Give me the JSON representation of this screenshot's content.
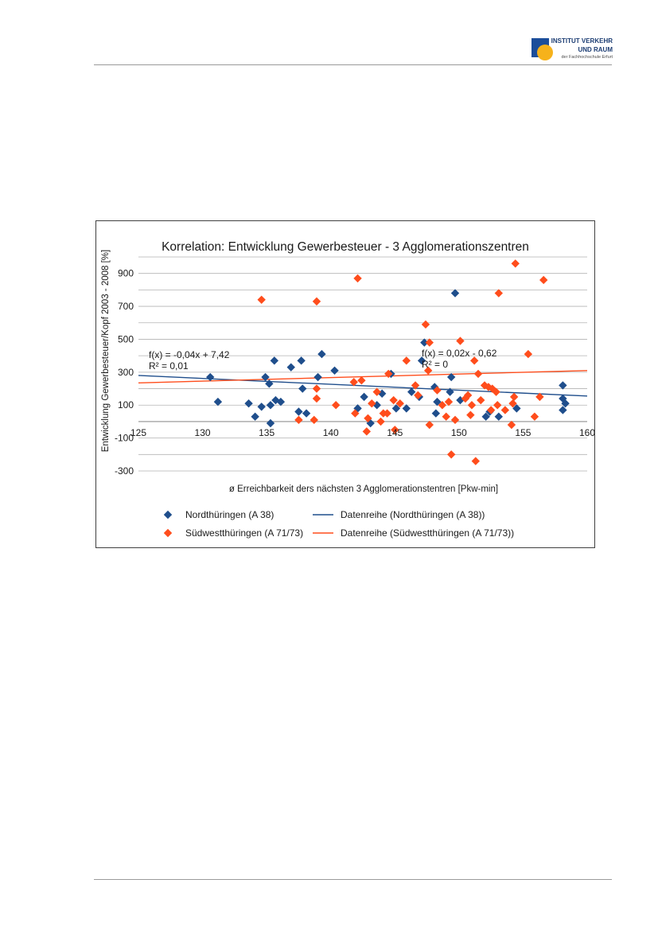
{
  "logo": {
    "line1": "INSTITUT VERKEHR",
    "line2": "UND RAUM",
    "line3": "der Fachhochschule Erfurt"
  },
  "chart_data": {
    "type": "scatter",
    "title": "Korrelation: Entwicklung Gewerbesteuer - 3 Agglomerationszentren",
    "xlabel": "ø Erreichbarkeit ders nächsten 3 Agglomerationstentren [Pkw-min]",
    "ylabel": "Entwicklung Gewerbesteuer/Kopf 2003 - 2008 [%]",
    "xlim": [
      125,
      160
    ],
    "ylim": [
      -300,
      1000
    ],
    "x_ticks": [
      "125",
      "130",
      "135",
      "140",
      "145",
      "150",
      "155",
      "160"
    ],
    "y_ticks": [
      "-300",
      "-100",
      "100",
      "300",
      "500",
      "700",
      "900"
    ],
    "grid": true,
    "legend_position": "bottom",
    "legend": [
      {
        "label": "Nordthüringen (A 38)",
        "kind": "marker",
        "color": "#1f4e8c"
      },
      {
        "label": "Datenreihe (Nordthüringen (A 38))",
        "kind": "line",
        "color": "#1f4e8c"
      },
      {
        "label": "Südwestthüringen (A 71/73)",
        "kind": "marker",
        "color": "#ff4d1c"
      },
      {
        "label": "Datenreihe (Südwestthüringen (A 71/73))",
        "kind": "line",
        "color": "#ff4d1c"
      }
    ],
    "annotations": [
      {
        "line1": "f(x) = -0,04x + 7,42",
        "line2": "R² = 0,01"
      },
      {
        "line1": "f(x) = 0,02x - 0,62",
        "line2": "R² = 0"
      }
    ],
    "series": [
      {
        "name": "Nordthüringen (A 38)",
        "color": "#1f4e8c",
        "trend": [
          [
            125,
            280
          ],
          [
            160,
            155
          ]
        ],
        "points": [
          [
            130.6,
            270
          ],
          [
            131.2,
            120
          ],
          [
            133.6,
            110
          ],
          [
            134.1,
            30
          ],
          [
            134.6,
            90
          ],
          [
            134.9,
            270
          ],
          [
            135.2,
            230
          ],
          [
            135.3,
            100
          ],
          [
            135.3,
            -10
          ],
          [
            135.6,
            370
          ],
          [
            135.7,
            130
          ],
          [
            136.1,
            120
          ],
          [
            136.9,
            330
          ],
          [
            137.5,
            60
          ],
          [
            137.7,
            370
          ],
          [
            137.8,
            200
          ],
          [
            138.1,
            50
          ],
          [
            139.0,
            270
          ],
          [
            139.3,
            410
          ],
          [
            140.3,
            310
          ],
          [
            142.1,
            80
          ],
          [
            142.6,
            150
          ],
          [
            143.1,
            -10
          ],
          [
            143.6,
            100
          ],
          [
            144.0,
            170
          ],
          [
            144.7,
            290
          ],
          [
            145.1,
            80
          ],
          [
            145.9,
            80
          ],
          [
            146.3,
            180
          ],
          [
            146.9,
            150
          ],
          [
            147.1,
            370
          ],
          [
            147.3,
            480
          ],
          [
            148.1,
            210
          ],
          [
            148.2,
            50
          ],
          [
            148.3,
            120
          ],
          [
            149.3,
            180
          ],
          [
            149.4,
            270
          ],
          [
            149.7,
            780
          ],
          [
            150.1,
            130
          ],
          [
            152.1,
            30
          ],
          [
            152.4,
            60
          ],
          [
            153.1,
            30
          ],
          [
            154.5,
            80
          ],
          [
            158.1,
            220
          ],
          [
            158.1,
            140
          ],
          [
            158.3,
            110
          ],
          [
            158.1,
            70
          ]
        ]
      },
      {
        "name": "Südwestthüringen (A 71/73)",
        "color": "#ff4d1c",
        "trend": [
          [
            125,
            235
          ],
          [
            160,
            310
          ]
        ],
        "points": [
          [
            134.6,
            740
          ],
          [
            137.5,
            10
          ],
          [
            138.7,
            10
          ],
          [
            138.9,
            730
          ],
          [
            138.9,
            200
          ],
          [
            138.9,
            140
          ],
          [
            140.4,
            100
          ],
          [
            141.8,
            240
          ],
          [
            141.9,
            50
          ],
          [
            142.1,
            870
          ],
          [
            142.4,
            250
          ],
          [
            142.8,
            -60
          ],
          [
            142.9,
            20
          ],
          [
            143.2,
            110
          ],
          [
            143.6,
            180
          ],
          [
            143.9,
            0
          ],
          [
            144.1,
            50
          ],
          [
            144.4,
            50
          ],
          [
            144.5,
            290
          ],
          [
            144.9,
            130
          ],
          [
            145.0,
            -50
          ],
          [
            145.4,
            110
          ],
          [
            145.9,
            370
          ],
          [
            146.6,
            220
          ],
          [
            146.8,
            160
          ],
          [
            147.4,
            590
          ],
          [
            147.6,
            310
          ],
          [
            147.7,
            480
          ],
          [
            147.7,
            -20
          ],
          [
            148.3,
            190
          ],
          [
            148.7,
            100
          ],
          [
            149.0,
            30
          ],
          [
            149.2,
            120
          ],
          [
            149.4,
            -200
          ],
          [
            149.7,
            10
          ],
          [
            150.1,
            490
          ],
          [
            150.5,
            140
          ],
          [
            150.7,
            160
          ],
          [
            150.9,
            40
          ],
          [
            151.2,
            370
          ],
          [
            151.3,
            -240
          ],
          [
            151.5,
            290
          ],
          [
            151.7,
            130
          ],
          [
            152.0,
            220
          ],
          [
            152.3,
            210
          ],
          [
            152.6,
            200
          ],
          [
            152.9,
            180
          ],
          [
            153.1,
            780
          ],
          [
            153.6,
            70
          ],
          [
            154.1,
            -20
          ],
          [
            154.3,
            150
          ],
          [
            154.4,
            960
          ],
          [
            155.4,
            410
          ],
          [
            155.9,
            30
          ],
          [
            156.3,
            150
          ],
          [
            156.6,
            860
          ],
          [
            153.0,
            100
          ],
          [
            154.2,
            110
          ],
          [
            152.5,
            70
          ],
          [
            151.0,
            100
          ]
        ]
      }
    ]
  }
}
